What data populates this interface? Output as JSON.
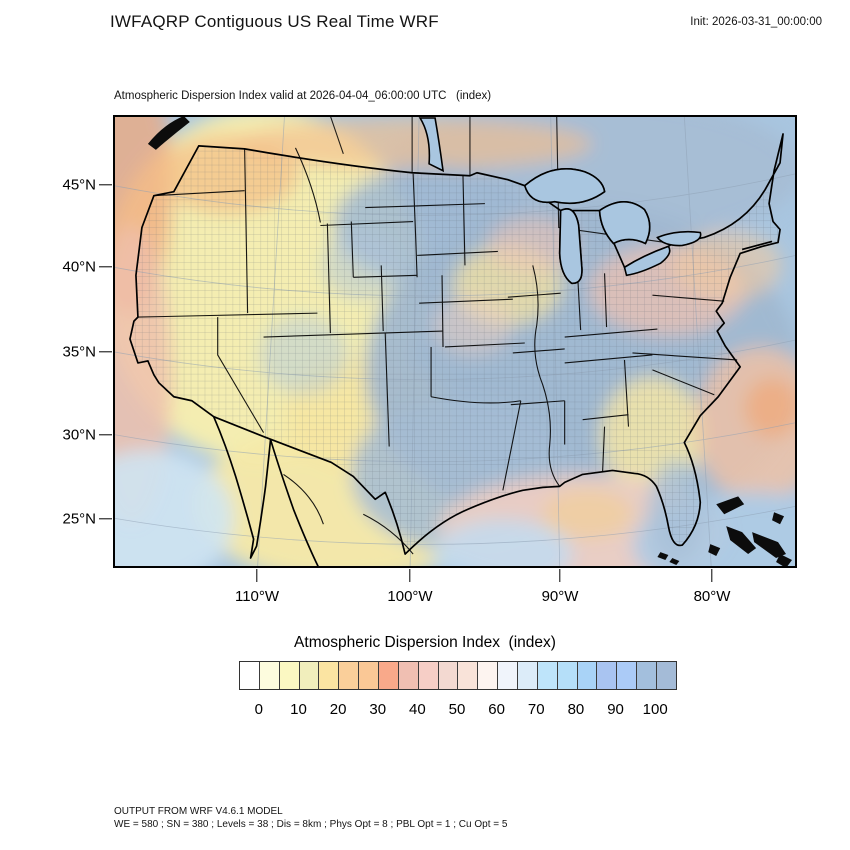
{
  "header": {
    "title": "IWFAQRP Contiguous US Real Time WRF",
    "init_label": "Init: 2026-03-31_00:00:00"
  },
  "map": {
    "subtitle": "Atmospheric Dispersion Index valid at 2026-04-04_06:00:00 UTC   (index)",
    "lat_ticks": [
      "45°N",
      "40°N",
      "35°N",
      "30°N",
      "25°N"
    ],
    "lon_ticks": [
      "110°W",
      "100°W",
      "90°W",
      "80°W"
    ]
  },
  "colorbar": {
    "title": "Atmospheric Dispersion Index  (index)",
    "tick_labels": [
      "0",
      "10",
      "20",
      "30",
      "40",
      "50",
      "60",
      "70",
      "80",
      "90",
      "100"
    ],
    "cell_colors": [
      "#ffffff",
      "#fdfcde",
      "#fbf8c2",
      "#f1eebc",
      "#fbe4a2",
      "#facf9a",
      "#fac896",
      "#f9a98a",
      "#f0bfb2",
      "#f6cec6",
      "#f3d9d1",
      "#f9e3d9",
      "#fdf4f0",
      "#f0f4fb",
      "#dcecf9",
      "#bee4fa",
      "#b5dff9",
      "#a9d3f7",
      "#a9c4f1",
      "#abcbf7",
      "#a3bfdd",
      "#a4bbd7"
    ]
  },
  "footer": {
    "line1": "OUTPUT FROM WRF V4.6.1 MODEL",
    "line2": "WE = 580 ; SN = 380 ; Levels = 38 ; Dis = 8km ; Phys Opt = 8 ; PBL Opt = 1 ; Cu Opt = 5"
  }
}
